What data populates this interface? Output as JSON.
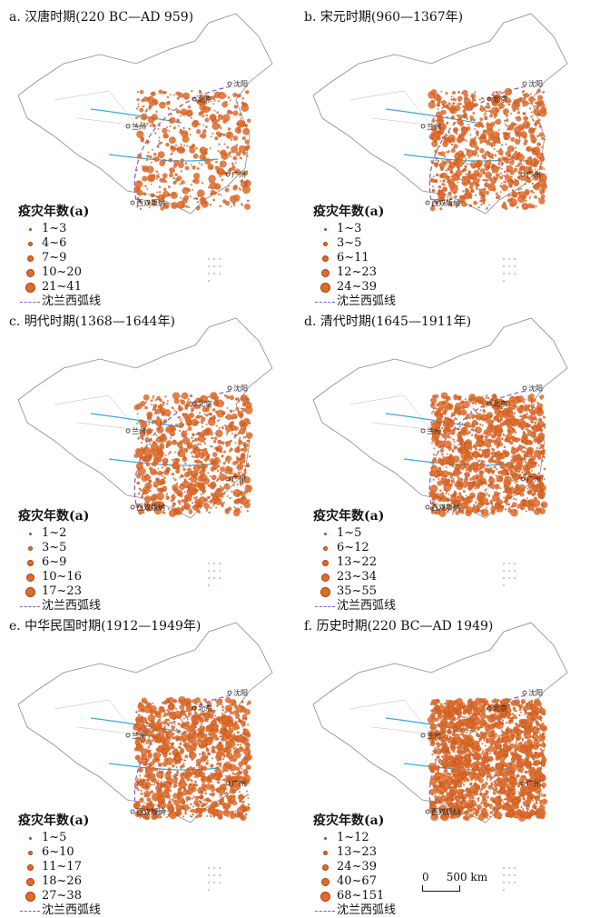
{
  "panels": [
    {
      "title": "a. 汉唐时期(220 BC—AD 959)",
      "legend_title": "疫灾年数(a)",
      "classes": [
        "1~3",
        "4~6",
        "7~9",
        "10~20",
        "21~41"
      ],
      "line_label": "沈兰西弧线",
      "density": "low"
    },
    {
      "title": "b. 宋元时期(960—1367年)",
      "legend_title": "疫灾年数(a)",
      "classes": [
        "1~3",
        "3~5",
        "6~11",
        "12~23",
        "24~39"
      ],
      "line_label": "沈兰西弧线",
      "density": "medium"
    },
    {
      "title": "c. 明代时期(1368—1644年)",
      "legend_title": "疫灾年数(a)",
      "classes": [
        "1~2",
        "3~5",
        "6~9",
        "10~16",
        "17~23"
      ],
      "line_label": "沈兰西弧线",
      "density": "medium"
    },
    {
      "title": "d. 清代时期(1645—1911年)",
      "legend_title": "疫灾年数(a)",
      "classes": [
        "1~5",
        "6~12",
        "13~22",
        "23~34",
        "35~55"
      ],
      "line_label": "沈兰西弧线",
      "density": "high"
    },
    {
      "title": "e. 中华民国时期(1912—1949年)",
      "legend_title": "疫灾年数(a)",
      "classes": [
        "1~5",
        "6~10",
        "11~17",
        "18~26",
        "27~38"
      ],
      "line_label": "沈兰西弧线",
      "density": "high"
    },
    {
      "title": "f. 历史时期(220 BC—AD 1949)",
      "legend_title": "疫灾年数(a)",
      "classes": [
        "1~12",
        "13~23",
        "24~39",
        "40~67",
        "68~151"
      ],
      "line_label": "沈兰西弧线",
      "density": "very-high"
    }
  ],
  "places": {
    "beijing": "北京",
    "shenyang": "沈阳",
    "lanzhou": "兰州",
    "xishuangbanna": "西双版纳",
    "guangzhou": "广州"
  },
  "scale_label": "0     500 km",
  "colors": {
    "dot_fill": "#e06c2a",
    "dot_stroke": "#a8420f",
    "arc": "#8a55c0",
    "water": "#3aa9d6",
    "border": "#888888"
  }
}
